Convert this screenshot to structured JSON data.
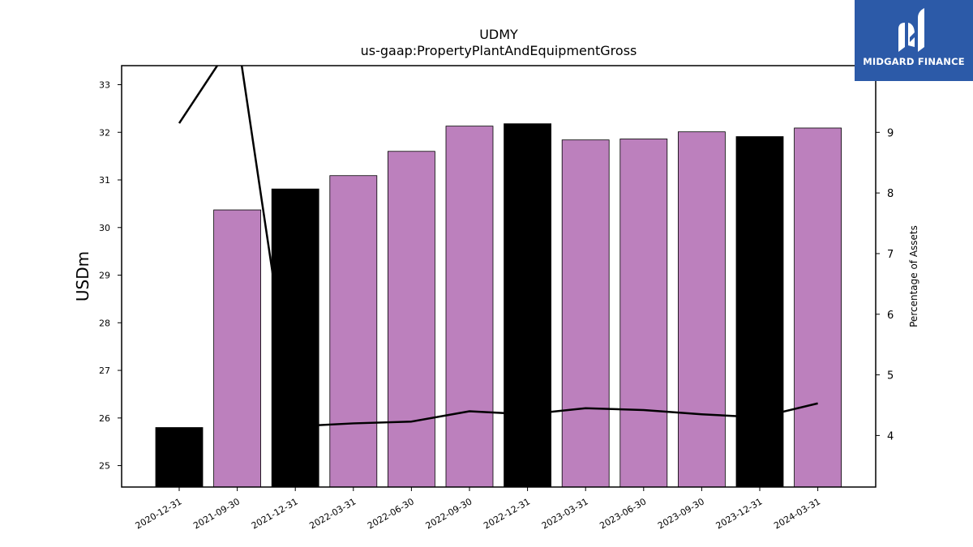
{
  "logo": {
    "text": "MIDGARD FINANCE"
  },
  "chart_data": {
    "type": "bar",
    "title": "UDMY",
    "subtitle": "us-gaap:PropertyPlantAndEquipmentGross",
    "ylabel": "USDm",
    "y2label": "Percentage of Assets",
    "categories": [
      "2020-12-31",
      "2021-09-30",
      "2021-12-31",
      "2022-03-31",
      "2022-06-30",
      "2022-09-30",
      "2022-12-31",
      "2023-03-31",
      "2023-06-30",
      "2023-09-30",
      "2023-12-31",
      "2024-03-31"
    ],
    "values": [
      25.8,
      30.37,
      30.81,
      31.09,
      31.6,
      32.13,
      32.18,
      31.84,
      31.86,
      32.01,
      31.91,
      32.09
    ],
    "bar_colors": [
      "#000000",
      "#bc80bd",
      "#000000",
      "#bc80bd",
      "#bc80bd",
      "#bc80bd",
      "#000000",
      "#bc80bd",
      "#bc80bd",
      "#bc80bd",
      "#000000",
      "#bc80bd"
    ],
    "line_series": {
      "name": "",
      "values": [
        9.15,
        10.6,
        4.15,
        4.2,
        4.23,
        4.4,
        4.35,
        4.45,
        4.42,
        4.35,
        4.3,
        4.53
      ],
      "color": "#000000"
    },
    "ylim": [
      24.55,
      33.4
    ],
    "y2lim": [
      3.15,
      10.1
    ],
    "yticks": [
      25,
      26,
      27,
      28,
      29,
      30,
      31,
      32,
      33
    ],
    "y2ticks": [
      4,
      5,
      6,
      7,
      8,
      9
    ],
    "grid": false,
    "legend": "none"
  }
}
